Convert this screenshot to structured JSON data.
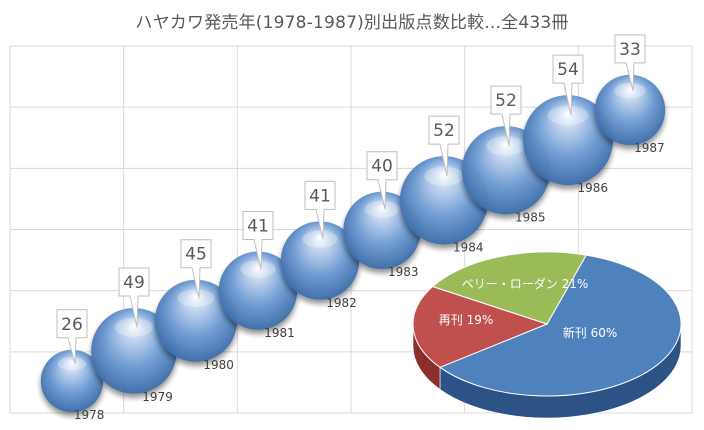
{
  "title": "ハヤカワ発売年(1978-1987)別出版点数比較...全433冊",
  "chart_data": [
    {
      "type": "bubble",
      "title": "ハヤカワ発売年(1978-1987)別出版点数比較...全433冊",
      "categories": [
        "1978",
        "1979",
        "1980",
        "1981",
        "1982",
        "1983",
        "1984",
        "1985",
        "1986",
        "1987"
      ],
      "values": [
        26,
        49,
        45,
        41,
        41,
        40,
        52,
        52,
        54,
        33
      ],
      "grid": true,
      "color": "#5b87c5"
    },
    {
      "type": "pie",
      "slices": [
        {
          "label": "新刊",
          "percent": 60,
          "color": "#4f81bd"
        },
        {
          "label": "再刊",
          "percent": 19,
          "color": "#c0504d"
        },
        {
          "label": "ベリー・ローダン",
          "percent": 21,
          "color": "#9bbb59"
        }
      ]
    }
  ]
}
